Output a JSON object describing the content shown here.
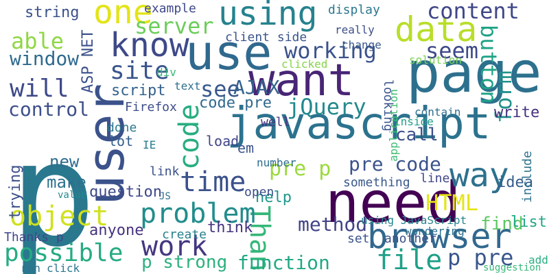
{
  "palette": {
    "purple": "#440154",
    "indigo": "#472d7b",
    "blue": "#3b528b",
    "steel": "#31688e",
    "teal": "#21908d",
    "green": "#35b779",
    "lime": "#90d743",
    "yellow": "#e3e418"
  },
  "words": [
    {
      "text": "p",
      "color": "#2a788e"
    },
    {
      "text": "javascript",
      "color": "#2c728e"
    },
    {
      "text": "page",
      "color": "#2d708e"
    },
    {
      "text": "user",
      "color": "#3b528b"
    },
    {
      "text": "need",
      "color": "#440154"
    },
    {
      "text": "use",
      "color": "#30698e"
    },
    {
      "text": "using",
      "color": "#26828e"
    },
    {
      "text": "want",
      "color": "#482576"
    },
    {
      "text": "browser",
      "color": "#31688e"
    },
    {
      "text": "data",
      "color": "#b8de29"
    },
    {
      "text": "way",
      "color": "#2d718e"
    },
    {
      "text": "one",
      "color": "#e3e418"
    },
    {
      "text": "know",
      "color": "#3e4989"
    },
    {
      "text": "Thank",
      "color": "#35b779"
    },
    {
      "text": "code",
      "color": "#27ad81"
    },
    {
      "text": "file",
      "color": "#1fa088"
    },
    {
      "text": "problem",
      "color": "#228c8d"
    },
    {
      "text": "object",
      "color": "#d0e11c"
    },
    {
      "text": "time",
      "color": "#3b528b"
    },
    {
      "text": "work",
      "color": "#453781"
    },
    {
      "text": "possible",
      "color": "#25ab82"
    },
    {
      "text": "server",
      "color": "#6ccd5a"
    },
    {
      "text": "able",
      "color": "#8fd744"
    },
    {
      "text": "will",
      "color": "#3e4989"
    },
    {
      "text": "site",
      "color": "#3a548c"
    },
    {
      "text": "working",
      "color": "#3b528b"
    },
    {
      "text": "seem",
      "color": "#3e4989"
    },
    {
      "text": "content",
      "color": "#3f4788"
    },
    {
      "text": "window",
      "color": "#2f6b8e"
    },
    {
      "text": "button",
      "color": "#20a386"
    },
    {
      "text": "form",
      "color": "#21918c"
    },
    {
      "text": "see",
      "color": "#38588c"
    },
    {
      "text": "jQuery",
      "color": "#23898e"
    },
    {
      "text": "AJAX",
      "color": "#33638d"
    },
    {
      "text": "control",
      "color": "#3d4e8a"
    },
    {
      "text": "pre p",
      "color": "#9bd93c"
    },
    {
      "text": "pre code",
      "color": "#3a538b"
    },
    {
      "text": "HTML",
      "color": "#e5e419"
    },
    {
      "text": "method",
      "color": "#414487"
    },
    {
      "text": "function",
      "color": "#22a884"
    },
    {
      "text": "p strong",
      "color": "#2cb17e"
    },
    {
      "text": "p pre",
      "color": "#39568c"
    },
    {
      "text": "string",
      "color": "#3b518b"
    },
    {
      "text": "example",
      "color": "#3f4889"
    },
    {
      "text": "call",
      "color": "#3c508b"
    },
    {
      "text": "question",
      "color": "#3e4989"
    },
    {
      "text": "anyone",
      "color": "#46327e"
    },
    {
      "text": "code pre",
      "color": "#30698e"
    },
    {
      "text": "make",
      "color": "#2c718e"
    },
    {
      "text": "new",
      "color": "#2f6c8e"
    },
    {
      "text": "find",
      "color": "#5dc863"
    },
    {
      "text": "help",
      "color": "#1f988b"
    },
    {
      "text": "trying",
      "color": "#3c4f8a"
    },
    {
      "text": "think",
      "color": "#46337f"
    },
    {
      "text": "script",
      "color": "#33628d"
    },
    {
      "text": "ASP NET",
      "color": "#3b528b"
    },
    {
      "text": "client side",
      "color": "#3a548c"
    },
    {
      "text": "display",
      "color": "#2a768e"
    },
    {
      "text": "Firefox",
      "color": "#3d4d8a"
    },
    {
      "text": "write",
      "color": "#46307e"
    },
    {
      "text": "something",
      "color": "#38598c"
    },
    {
      "text": "using JavaScript",
      "color": "#25858e"
    },
    {
      "text": "idea",
      "color": "#365c8d"
    },
    {
      "text": "include",
      "color": "#2c728e"
    },
    {
      "text": "list",
      "color": "#22a785"
    },
    {
      "text": "another",
      "color": "#3c4f8a"
    },
    {
      "text": "wondering",
      "color": "#2d708e"
    },
    {
      "text": "Thanks p",
      "color": "#3f4788"
    },
    {
      "text": "create",
      "color": "#27808e"
    },
    {
      "text": "click",
      "color": "#2a768e"
    },
    {
      "text": "run",
      "color": "#2c718e"
    },
    {
      "text": "load",
      "color": "#404688"
    },
    {
      "text": "well",
      "color": "#453581"
    },
    {
      "text": "lot",
      "color": "#34608d"
    },
    {
      "text": "done",
      "color": "#2a788e"
    },
    {
      "text": "IE",
      "color": "#287d8e"
    },
    {
      "text": "em",
      "color": "#3a548c"
    },
    {
      "text": "link",
      "color": "#3b518b"
    },
    {
      "text": "value",
      "color": "#23888e"
    },
    {
      "text": "JS",
      "color": "#2e6e8e"
    },
    {
      "text": "number",
      "color": "#2e6d8e"
    },
    {
      "text": "open",
      "color": "#3d4d8a"
    },
    {
      "text": "set",
      "color": "#3b528b"
    },
    {
      "text": "solution",
      "color": "#7ad151"
    },
    {
      "text": "looking",
      "color": "#3a548c"
    },
    {
      "text": "clicked",
      "color": "#86d549"
    },
    {
      "text": "really",
      "color": "#3d4e8a"
    },
    {
      "text": "change",
      "color": "#38588c"
    },
    {
      "text": "div",
      "color": "#37b878"
    },
    {
      "text": "text",
      "color": "#2d708e"
    },
    {
      "text": "contain",
      "color": "#2e6e8e"
    },
    {
      "text": "inside",
      "color": "#1f9e89"
    },
    {
      "text": "application",
      "color": "#3fbc73"
    },
    {
      "text": "line",
      "color": "#404688"
    },
    {
      "text": "add",
      "color": "#27ad81"
    },
    {
      "text": "suggestion",
      "color": "#35b779"
    }
  ]
}
